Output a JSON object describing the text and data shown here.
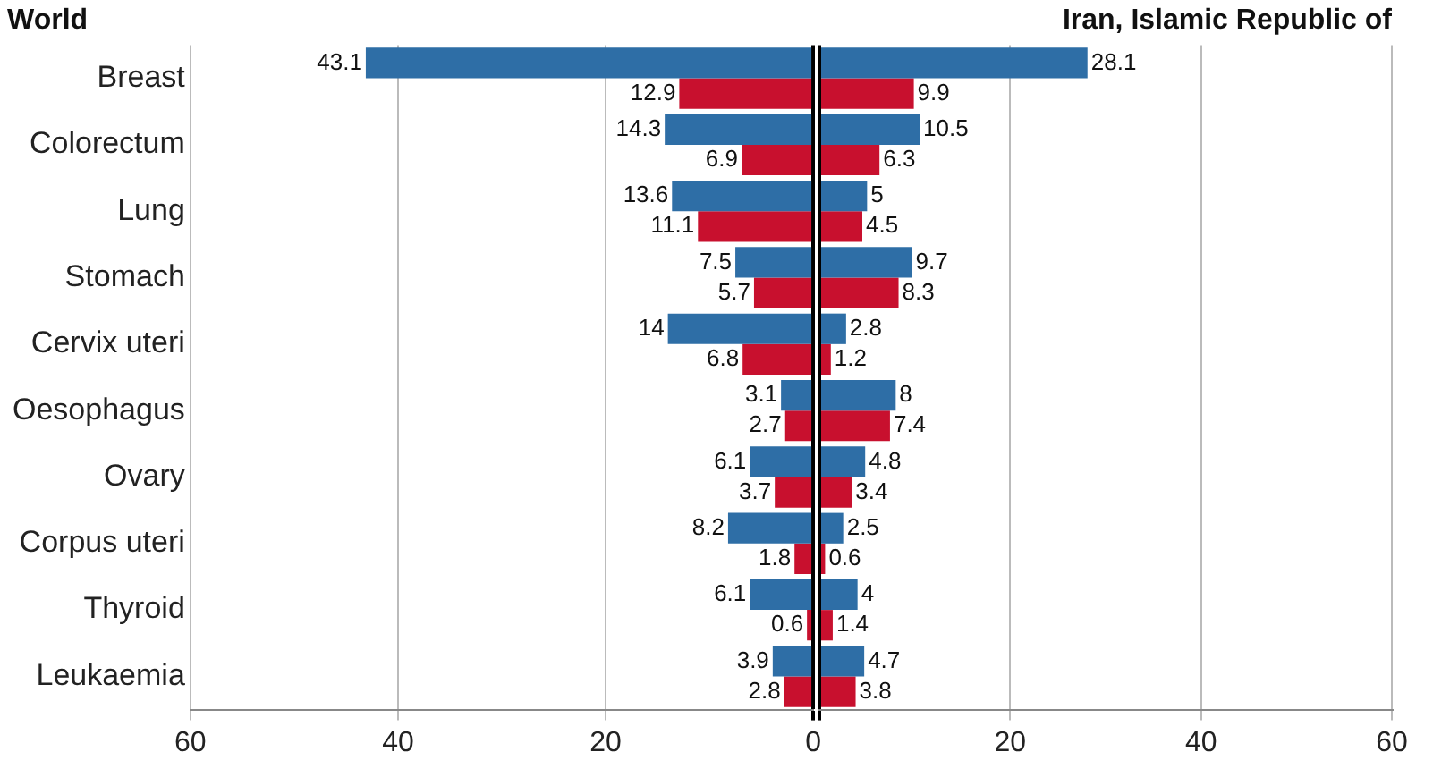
{
  "chart_data": [
    {
      "type": "bar",
      "orientation": "horizontal",
      "title": "World",
      "categories": [
        "Breast",
        "Colorectum",
        "Lung",
        "Stomach",
        "Cervix uteri",
        "Oesophagus",
        "Ovary",
        "Corpus uteri",
        "Thyroid",
        "Leukaemia"
      ],
      "series": [
        {
          "color": "#2e6ea6",
          "values": [
            43.1,
            14.3,
            13.6,
            7.5,
            14,
            3.1,
            6.1,
            8.2,
            6.1,
            3.9
          ]
        },
        {
          "color": "#c8102e",
          "values": [
            12.9,
            6.9,
            11.1,
            5.7,
            6.8,
            2.7,
            3.7,
            1.8,
            0.6,
            2.8
          ]
        }
      ],
      "xlim": [
        60,
        0
      ],
      "xticks": [
        60,
        40,
        20,
        0
      ],
      "grid": "x",
      "legend": false,
      "data_labels": true
    },
    {
      "type": "bar",
      "orientation": "horizontal",
      "title": "Iran, Islamic Republic of",
      "categories": [
        null,
        null,
        null,
        null,
        null,
        null,
        null,
        null,
        null,
        null
      ],
      "series": [
        {
          "color": "#2e6ea6",
          "values": [
            28.1,
            10.5,
            5,
            9.7,
            2.8,
            8,
            4.8,
            2.5,
            4,
            4.7
          ]
        },
        {
          "color": "#c8102e",
          "values": [
            9.9,
            6.3,
            4.5,
            8.3,
            1.2,
            7.4,
            3.4,
            0.6,
            1.4,
            3.8
          ]
        }
      ],
      "xlim": [
        0,
        60
      ],
      "xticks": [
        {
          "value": 0,
          "label": null
        },
        20,
        40,
        60
      ],
      "grid": "x",
      "legend": false,
      "data_labels": true,
      "tick_labels": "x"
    }
  ]
}
